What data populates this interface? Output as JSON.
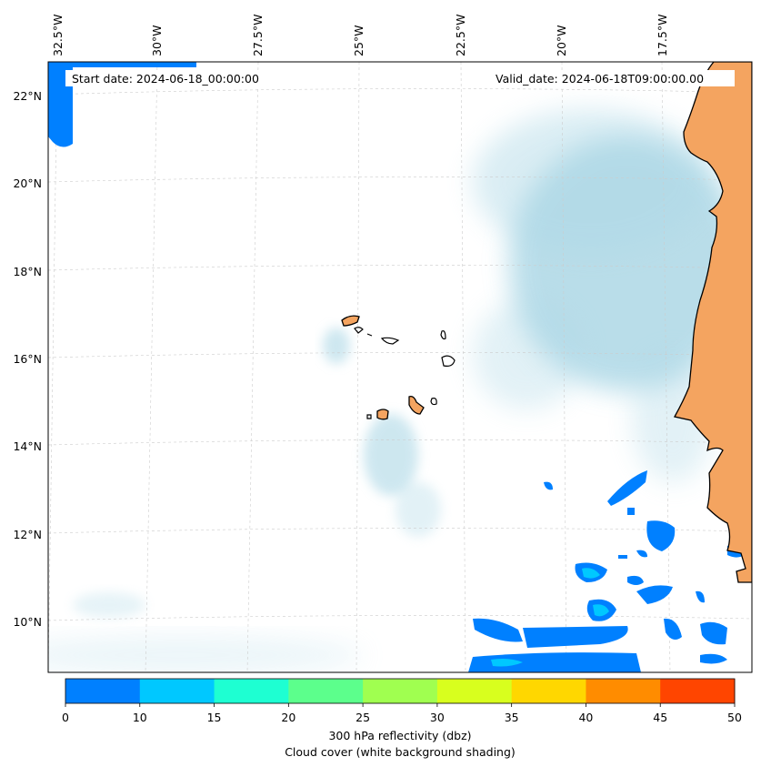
{
  "map": {
    "start_date": "Start date: 2024-06-18_00:00:00",
    "valid_date": "Valid_date: 2024-06-18T09:00:00.00",
    "lon_labels": [
      "32.5°W",
      "30°W",
      "27.5°W",
      "25°W",
      "22.5°W",
      "20°W",
      "17.5°W"
    ],
    "lat_labels": [
      "22°N",
      "20°N",
      "18°N",
      "16°N",
      "14°N",
      "12°N",
      "10°N"
    ],
    "land_color": "#f4a460",
    "cloud_color": "#add8e6"
  },
  "colorbar": {
    "ticks": [
      "0",
      "10",
      "15",
      "20",
      "25",
      "30",
      "35",
      "40",
      "45",
      "50"
    ],
    "colors": [
      "#0080ff",
      "#00c8ff",
      "#1effd2",
      "#5cff8c",
      "#a0ff50",
      "#d8ff1e",
      "#ffd700",
      "#ff8c00",
      "#ff4500"
    ],
    "label": "300 hPa reflectivity (dbz)",
    "sublabel": "Cloud cover (white background shading)"
  }
}
